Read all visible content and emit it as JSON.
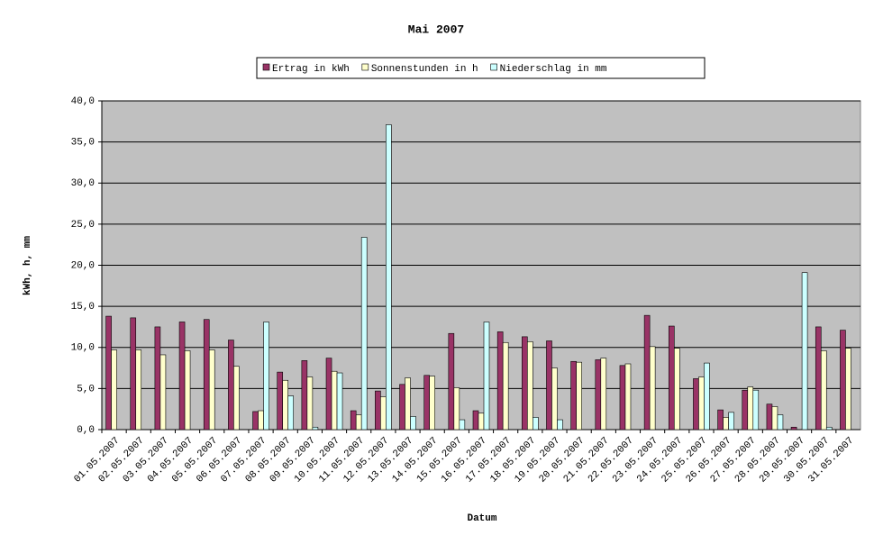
{
  "chart_data": {
    "type": "bar",
    "title": "Mai 2007",
    "x_label": "Datum",
    "y_label": "kWh, h, mm",
    "categories": [
      "01.05.2007",
      "02.05.2007",
      "03.05.2007",
      "04.05.2007",
      "05.05.2007",
      "06.05.2007",
      "07.05.2007",
      "08.05.2007",
      "09.05.2007",
      "10.05.2007",
      "11.05.2007",
      "12.05.2007",
      "13.05.2007",
      "14.05.2007",
      "15.05.2007",
      "16.05.2007",
      "17.05.2007",
      "18.05.2007",
      "19.05.2007",
      "20.05.2007",
      "21.05.2007",
      "22.05.2007",
      "23.05.2007",
      "24.05.2007",
      "25.05.2007",
      "26.05.2007",
      "27.05.2007",
      "28.05.2007",
      "29.05.2007",
      "30.05.2007",
      "31.05.2007"
    ],
    "series": [
      {
        "name": "Ertrag in kWh",
        "color": "#993366",
        "values": [
          13.8,
          13.6,
          12.5,
          13.1,
          13.4,
          10.9,
          2.2,
          7.0,
          8.4,
          8.7,
          2.3,
          4.7,
          5.5,
          6.6,
          11.7,
          2.3,
          11.9,
          11.3,
          10.8,
          8.3,
          8.5,
          7.8,
          13.9,
          12.6,
          6.2,
          2.4,
          4.8,
          3.1,
          0.3,
          12.5,
          12.1
        ]
      },
      {
        "name": "Sonnenstunden in h",
        "color": "#ffffcc",
        "values": [
          9.7,
          9.7,
          9.1,
          9.6,
          9.7,
          7.7,
          2.3,
          6.0,
          6.4,
          7.1,
          1.8,
          4.0,
          6.3,
          6.5,
          5.1,
          2.0,
          10.6,
          10.7,
          7.5,
          8.2,
          8.7,
          8.0,
          10.1,
          9.9,
          6.4,
          1.5,
          5.2,
          2.8,
          0,
          9.6,
          9.9
        ]
      },
      {
        "name": "Niederschlag in mm",
        "color": "#ccffff",
        "values": [
          0,
          0,
          0,
          0,
          0,
          0,
          13.1,
          4.1,
          0.3,
          6.9,
          23.4,
          37.1,
          1.6,
          0,
          1.2,
          13.1,
          0,
          1.5,
          1.2,
          0,
          0,
          0,
          0,
          0,
          8.1,
          2.1,
          4.8,
          1.8,
          19.1,
          0.3,
          0
        ]
      }
    ],
    "ylim": [
      0,
      40
    ],
    "yticks": [
      {
        "value": 0,
        "label": "0,0"
      },
      {
        "value": 5,
        "label": "5,0"
      },
      {
        "value": 10,
        "label": "10,0"
      },
      {
        "value": 15,
        "label": "15,0"
      },
      {
        "value": 20,
        "label": "20,0"
      },
      {
        "value": 25,
        "label": "25,0"
      },
      {
        "value": 30,
        "label": "30,0"
      },
      {
        "value": 35,
        "label": "35,0"
      },
      {
        "value": 40,
        "label": "40,0"
      }
    ],
    "grid": true,
    "plot_background": "#c0c0c0",
    "legend_position": "top"
  }
}
